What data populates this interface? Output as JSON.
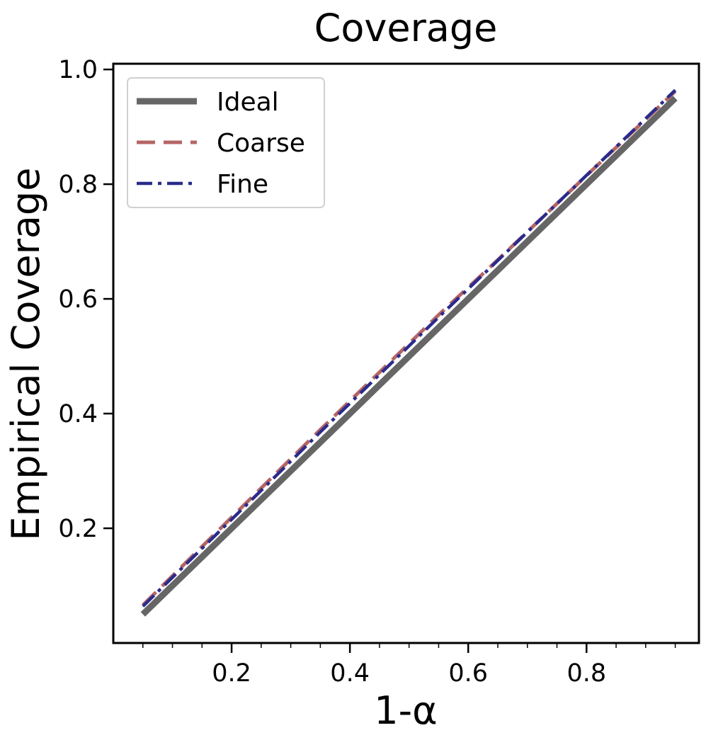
{
  "chart_data": {
    "type": "line",
    "title": "Coverage",
    "xlabel": "1-α",
    "ylabel": "Empirical Coverage",
    "xlim": [
      0.0,
      0.99
    ],
    "ylim": [
      0.0,
      1.01
    ],
    "x_ticks": [
      0.2,
      0.4,
      0.6,
      0.8
    ],
    "x_tick_labels": [
      "0.2",
      "0.4",
      "0.6",
      "0.8"
    ],
    "x_minor_ticks": [
      0.05,
      0.1,
      0.15,
      0.25,
      0.3,
      0.35,
      0.45,
      0.5,
      0.55,
      0.65,
      0.7,
      0.75,
      0.85,
      0.9,
      0.95
    ],
    "y_ticks": [
      0.2,
      0.4,
      0.6,
      0.8,
      1.0
    ],
    "y_tick_labels": [
      "0.2",
      "0.4",
      "0.6",
      "0.8",
      "1.0"
    ],
    "grid": false,
    "legend_position": "top-left",
    "series": [
      {
        "name": "Ideal",
        "color": "#666666",
        "style": "solid",
        "x": [
          0.05,
          0.15,
          0.25,
          0.35,
          0.45,
          0.55,
          0.65,
          0.75,
          0.85,
          0.95
        ],
        "y": [
          0.05,
          0.15,
          0.25,
          0.35,
          0.45,
          0.55,
          0.65,
          0.75,
          0.85,
          0.95
        ]
      },
      {
        "name": "Coarse",
        "color": "#b56565",
        "style": "dashed",
        "x": [
          0.05,
          0.15,
          0.25,
          0.35,
          0.45,
          0.55,
          0.65,
          0.75,
          0.85,
          0.95
        ],
        "y": [
          0.066,
          0.168,
          0.27,
          0.372,
          0.472,
          0.572,
          0.668,
          0.766,
          0.864,
          0.962
        ]
      },
      {
        "name": "Fine",
        "color": "#2b2b8c",
        "style": "dashdot",
        "x": [
          0.05,
          0.15,
          0.25,
          0.35,
          0.45,
          0.55,
          0.65,
          0.75,
          0.85,
          0.95
        ],
        "y": [
          0.064,
          0.165,
          0.266,
          0.368,
          0.468,
          0.568,
          0.667,
          0.766,
          0.865,
          0.964
        ]
      }
    ]
  }
}
